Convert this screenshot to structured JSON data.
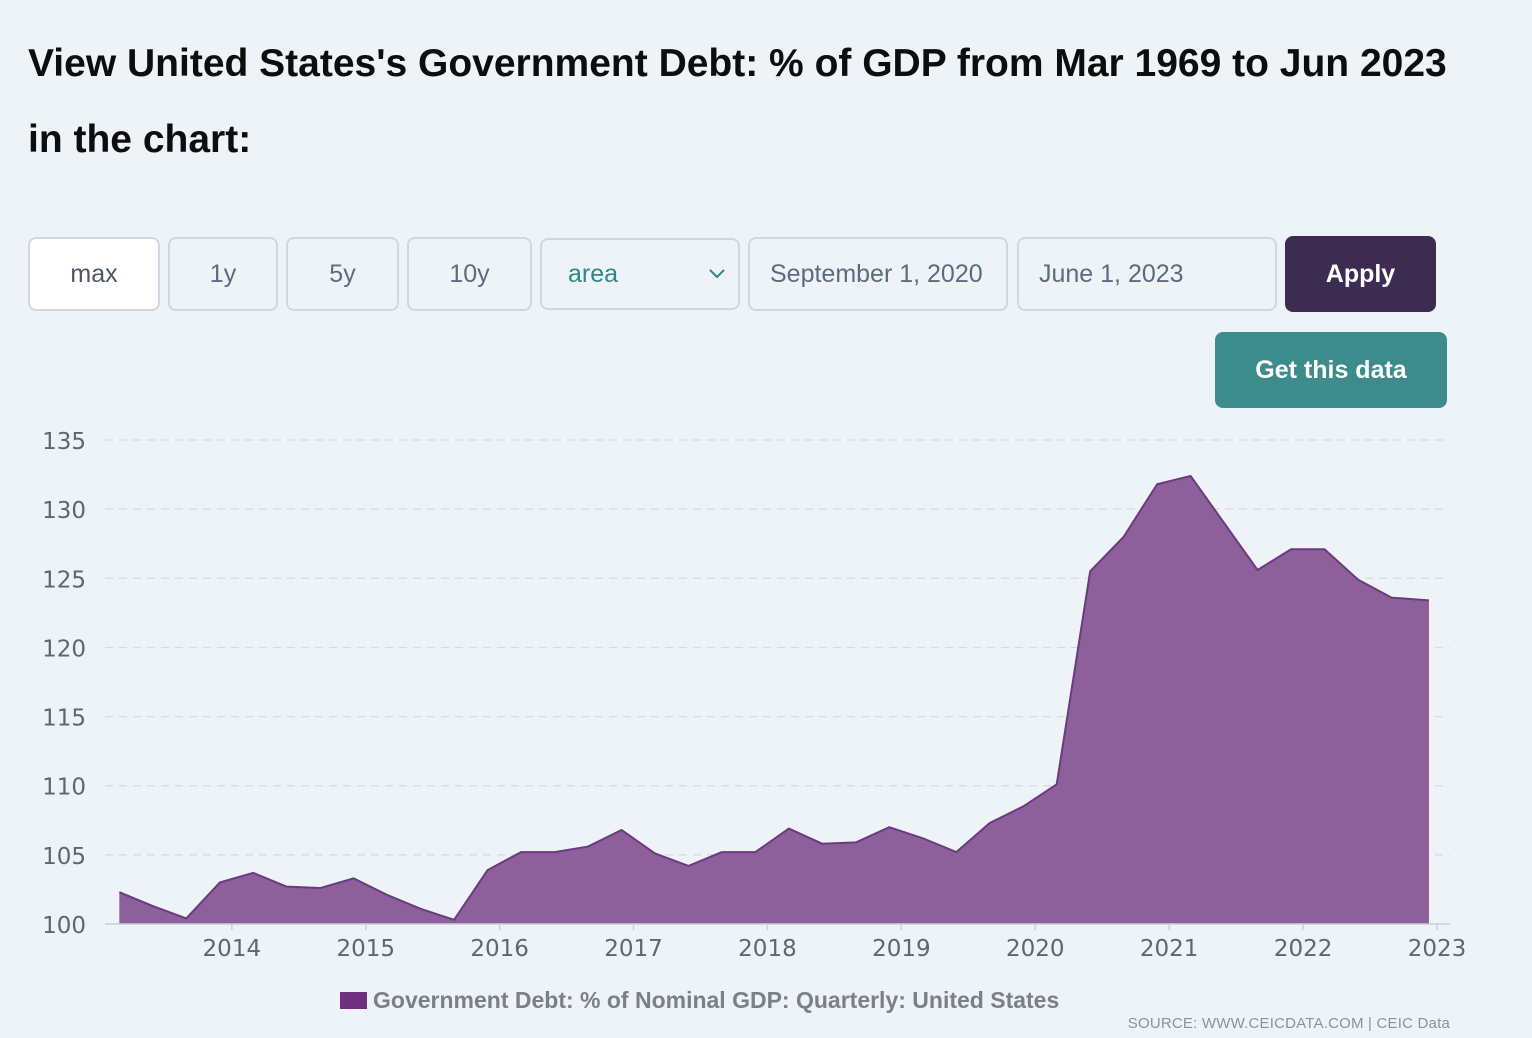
{
  "page": {
    "title": "View United States's Government Debt: % of GDP from Mar 1969 to Jun 2023 in the chart:"
  },
  "controls": {
    "range_buttons": [
      {
        "label": "max",
        "active": true
      },
      {
        "label": "1y",
        "active": false
      },
      {
        "label": "5y",
        "active": false
      },
      {
        "label": "10y",
        "active": false
      }
    ],
    "chart_type": {
      "selected": "area"
    },
    "start_date": "September 1, 2020",
    "end_date": "June 1, 2023",
    "apply_label": "Apply",
    "get_data_label": "Get this data"
  },
  "colors": {
    "series_fill": "#8e609b",
    "series_line": "#6b3a80",
    "legend_swatch": "#712f82",
    "apply_bg": "#3d2c52",
    "get_data_bg": "#3e8b8c"
  },
  "chart_data": {
    "type": "area",
    "title": "",
    "xlabel": "",
    "ylabel": "",
    "ylim": [
      100,
      135
    ],
    "xlim": [
      2013.15,
      2023.0
    ],
    "y_ticks": [
      "100",
      "105",
      "110",
      "115",
      "120",
      "125",
      "130",
      "135"
    ],
    "x_ticks": [
      "2014",
      "2015",
      "2016",
      "2017",
      "2018",
      "2019",
      "2020",
      "2021",
      "2022",
      "2023"
    ],
    "grid": true,
    "series": [
      {
        "name": "Government Debt: % of Nominal GDP: Quarterly: United States",
        "x": [
          2013.16,
          2013.41,
          2013.66,
          2013.91,
          2014.16,
          2014.41,
          2014.66,
          2014.91,
          2015.16,
          2015.41,
          2015.66,
          2015.91,
          2016.16,
          2016.41,
          2016.66,
          2016.91,
          2017.16,
          2017.41,
          2017.66,
          2017.91,
          2018.16,
          2018.41,
          2018.66,
          2018.91,
          2019.16,
          2019.41,
          2019.66,
          2019.91,
          2020.16,
          2020.41,
          2020.66,
          2020.91,
          2021.16,
          2021.41,
          2021.66,
          2021.91,
          2022.16,
          2022.41,
          2022.66,
          2022.94
        ],
        "values": [
          102.3,
          101.3,
          100.4,
          103.0,
          103.7,
          102.7,
          102.6,
          103.3,
          102.1,
          101.1,
          100.3,
          103.9,
          105.2,
          105.2,
          105.6,
          106.8,
          105.1,
          104.2,
          105.2,
          105.2,
          106.9,
          105.8,
          105.9,
          107.0,
          106.2,
          105.2,
          107.3,
          108.5,
          110.1,
          125.5,
          128.0,
          131.8,
          132.4,
          129.0,
          125.6,
          127.1,
          127.1,
          124.9,
          123.6,
          123.4
        ]
      }
    ],
    "legend": {
      "position": "bottom",
      "entries": [
        "Government Debt: % of Nominal GDP: Quarterly: United States"
      ]
    },
    "source": "SOURCE: WWW.CEICDATA.COM | CEIC Data"
  }
}
